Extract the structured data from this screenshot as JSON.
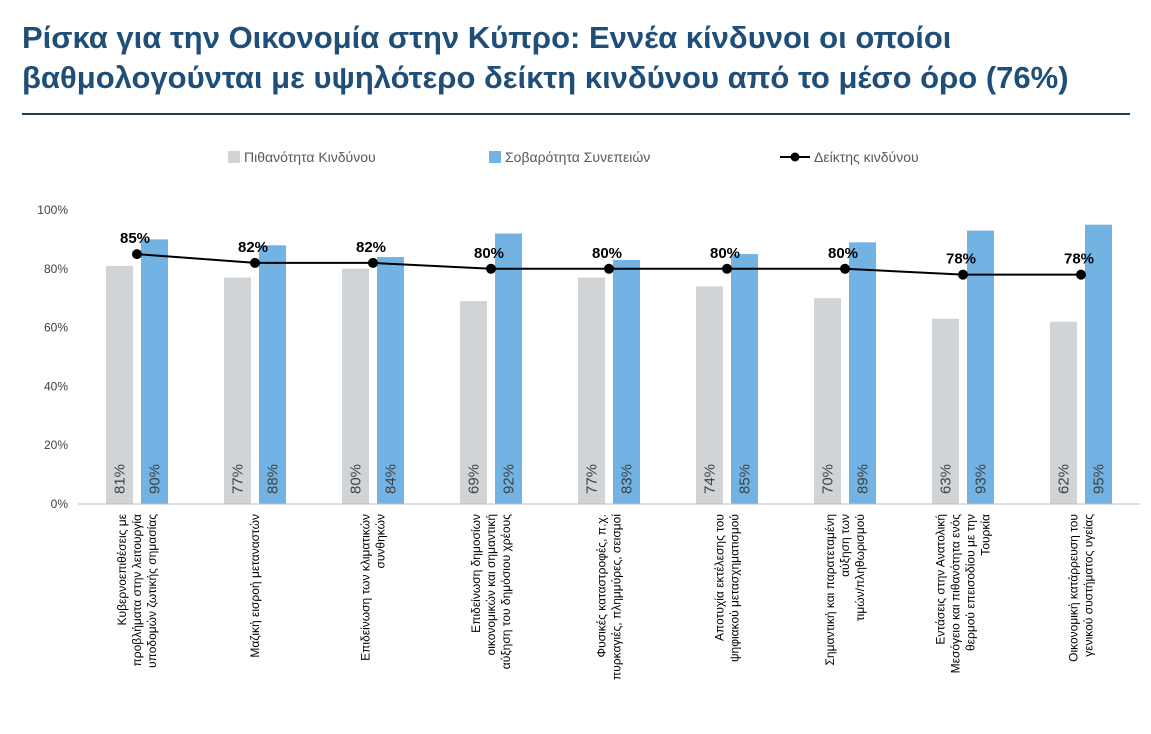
{
  "page": {
    "title_line1": "Ρίσκα για την Οικονομία στην Κύπρο: Εννέα κίνδυνοι οι οποίοι",
    "title_line2": "βαθμολογούνται με υψηλότερο δείκτη κινδύνου από το μέσο όρο (76%)"
  },
  "chart_data": {
    "type": "bar",
    "title": "Ρίσκα για την Οικονομία στην Κύπρο: Εννέα κίνδυνοι οι οποίοι βαθμολογούνται με υψηλότερο δείκτη κινδύνου από το μέσο όρο (76%)",
    "categories": [
      [
        "Κυβερνοεπιθέσεις με",
        "προβλήματα στην λειτουργία",
        "υποδομών ζωτικής σημασίας"
      ],
      [
        "Μαζική εισροή μεταναστών"
      ],
      [
        "Επιδείνωση των κλιματικών",
        "συνθηκών"
      ],
      [
        "Επιδείνωση δημοσίων",
        "οικονομικών και σημαντική",
        "αύξηση του δημόσιου χρέους"
      ],
      [
        "Φυσικές καταστροφές, π.χ.",
        "πυρκαγιές, πλημμύρες, σεισμοί"
      ],
      [
        "Αποτυχία εκτέλεσης του",
        "ψηφιακού μετασχηματισμού"
      ],
      [
        "Σημαντική και παρατεταμένη",
        "αύξηση των",
        "τιμών/πληθωρισμού"
      ],
      [
        "Εντάσεις στην Ανατολική",
        "Μεσόγειο και πιθανότητα ενός",
        "θερμού επεισοδίου με την",
        "Τουρκία"
      ],
      [
        "Οικονομική κατάρρευση του",
        "γενικού συστήματος υγείας"
      ]
    ],
    "series": [
      {
        "name": "Πιθανότητα Κινδύνου",
        "type": "bar",
        "color": "#d0d4d6",
        "values": [
          81,
          77,
          80,
          69,
          77,
          74,
          70,
          63,
          62
        ],
        "labels": [
          "81%",
          "77%",
          "80%",
          "69%",
          "77%",
          "74%",
          "70%",
          "63%",
          "62%"
        ]
      },
      {
        "name": "Σοβαρότητα Συνεπειών",
        "type": "bar",
        "color": "#72b3e3",
        "values": [
          90,
          88,
          84,
          92,
          83,
          85,
          89,
          93,
          95
        ],
        "labels": [
          "90%",
          "88%",
          "84%",
          "92%",
          "83%",
          "85%",
          "89%",
          "93%",
          "95%"
        ]
      },
      {
        "name": "Δείκτης κινδύνου",
        "type": "line",
        "color": "#000000",
        "values": [
          85,
          82,
          82,
          80,
          80,
          80,
          80,
          78,
          78
        ],
        "labels": [
          "85%",
          "82%",
          "82%",
          "80%",
          "80%",
          "80%",
          "80%",
          "78%",
          "78%"
        ]
      }
    ],
    "yticks": [
      "0%",
      "20%",
      "40%",
      "60%",
      "80%",
      "100%"
    ],
    "ylim": [
      0,
      100
    ],
    "legend_position": "top",
    "grid": false
  }
}
